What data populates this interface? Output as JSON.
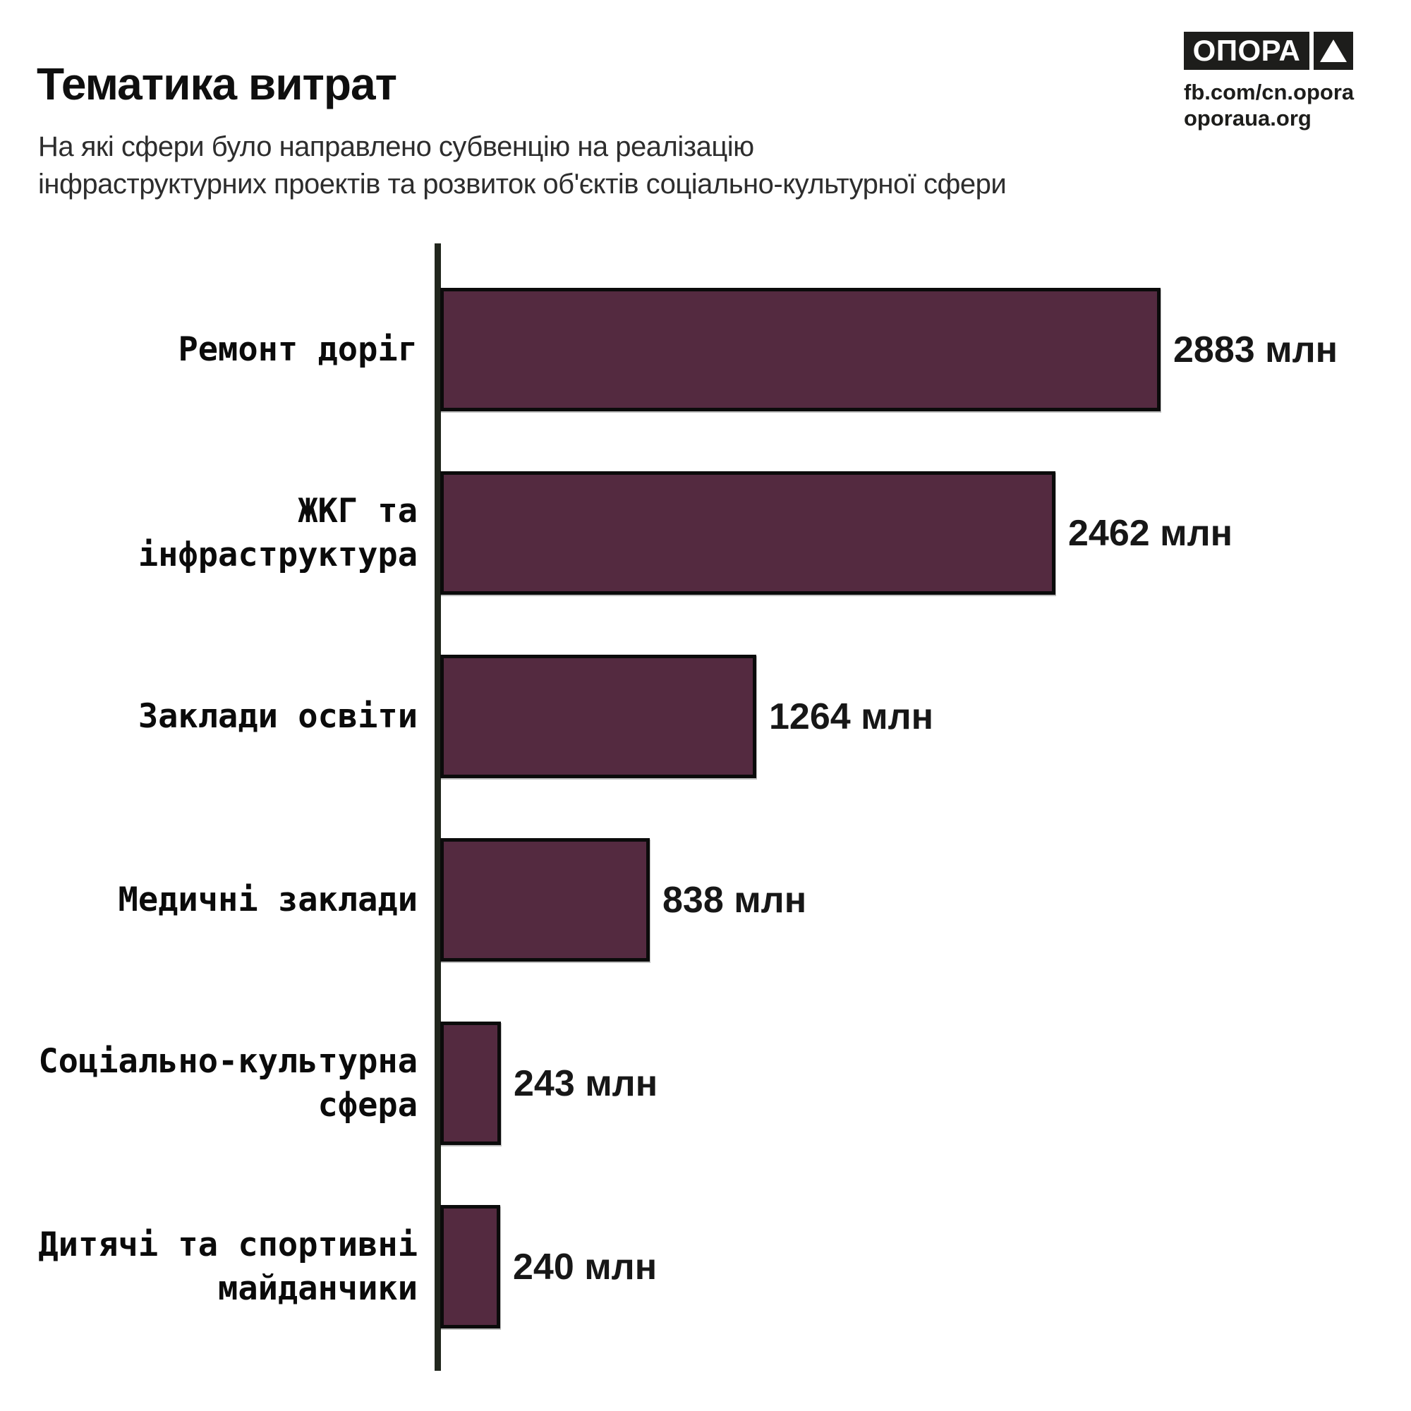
{
  "header": {
    "title": "Тематика витрат",
    "subtitle_line1": "На які сфери було направлено субвенцію на реалізацію",
    "subtitle_line2": "інфраструктурних проектів та розвиток об'єктів соціально-культурної сфери"
  },
  "logo": {
    "brand": "ОПОРА",
    "link1": "fb.com/cn.opora",
    "link2": "oporaua.org"
  },
  "chart_data": {
    "type": "bar",
    "orientation": "horizontal",
    "title": "Тематика витрат",
    "unit": "млн",
    "grid": false,
    "legend": false,
    "xlim": [
      0,
      2883
    ],
    "categories": [
      "Ремонт доріг",
      "ЖКГ та інфраструктура",
      "Заклади освіти",
      "Медичні заклади",
      "Соціально-культурна сфера",
      "Дитячі та спортивні майданчики"
    ],
    "label_lines": [
      [
        "Ремонт доріг"
      ],
      [
        "ЖКГ та",
        "інфраструктура"
      ],
      [
        "Заклади освіти"
      ],
      [
        "Медичні заклади"
      ],
      [
        "Соціально-культурна",
        "сфера"
      ],
      [
        "Дитячі та спортивні",
        "майданчики"
      ]
    ],
    "values": [
      2883,
      2462,
      1264,
      838,
      243,
      240
    ],
    "value_labels": [
      "2883 млн",
      "2462 млн",
      "1264 млн",
      "838 млн",
      "243 млн",
      "240 млн"
    ],
    "bar_color": "#542a40",
    "bar_border_color": "#0b0b0b",
    "axis_color": "#21261d"
  }
}
